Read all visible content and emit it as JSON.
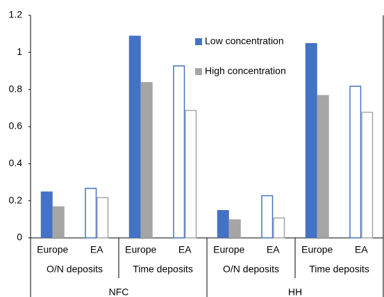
{
  "chart_data": {
    "type": "bar",
    "groups": [
      {
        "name": "NFC",
        "subgroups": [
          {
            "name": "O/N deposits",
            "categories": [
              "Europe",
              "EA"
            ]
          },
          {
            "name": "Time deposits",
            "categories": [
              "Europe",
              "EA"
            ]
          }
        ]
      },
      {
        "name": "HH",
        "subgroups": [
          {
            "name": "O/N deposits",
            "categories": [
              "Europe",
              "EA"
            ]
          },
          {
            "name": "Time deposits",
            "categories": [
              "Europe",
              "EA"
            ]
          }
        ]
      }
    ],
    "bar_style": [
      "filled",
      "outline",
      "filled",
      "outline",
      "filled",
      "outline",
      "filled",
      "outline"
    ],
    "series": [
      {
        "name": "Low concentration",
        "color": "#4472c4",
        "values": [
          0.25,
          0.27,
          1.09,
          0.93,
          0.15,
          0.23,
          1.05,
          0.82
        ]
      },
      {
        "name": "High concentration",
        "color": "#a5a5a5",
        "values": [
          0.17,
          0.22,
          0.84,
          0.69,
          0.1,
          0.11,
          0.77,
          0.68
        ]
      }
    ],
    "ylim": [
      0,
      1.2
    ],
    "yticks": [
      0,
      0.2,
      0.4,
      0.6,
      0.8,
      1,
      1.2
    ]
  }
}
